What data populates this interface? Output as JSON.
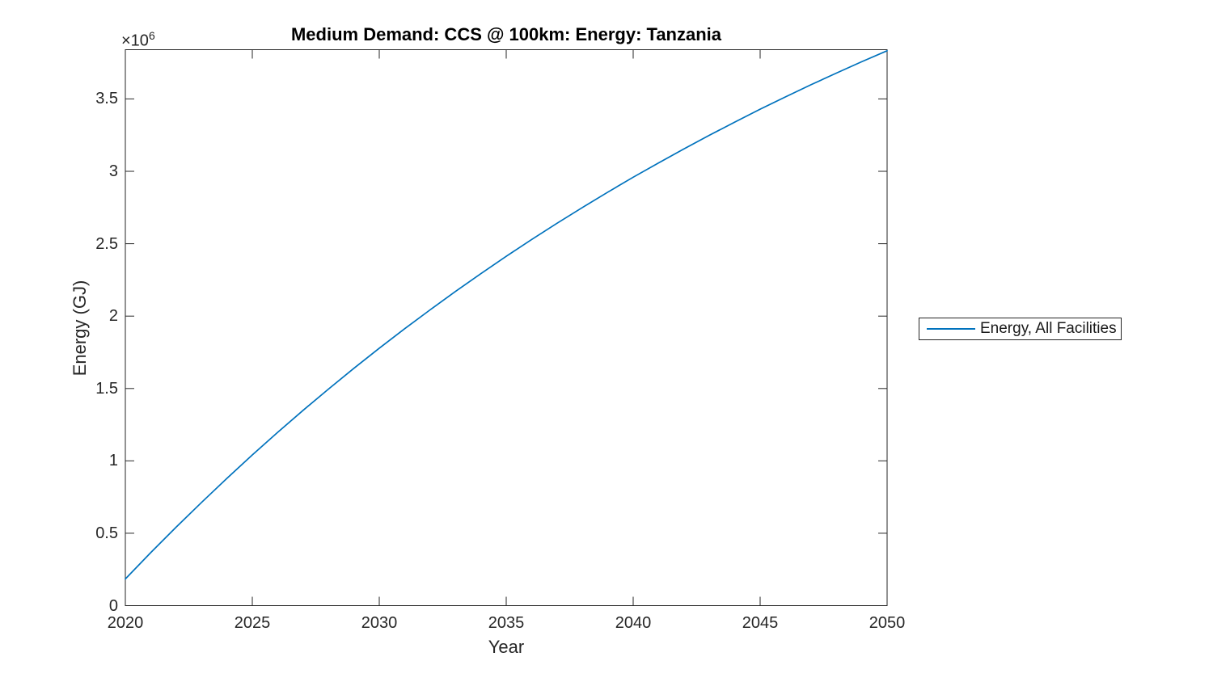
{
  "figure": {
    "background": "#ffffff"
  },
  "chart_data": {
    "type": "line",
    "title": "Medium Demand: CCS @ 100km: Energy: Tanzania",
    "xlabel": "Year",
    "ylabel": "Energy (GJ)",
    "y_axis_exponent": {
      "base": "×10",
      "power": "6"
    },
    "xlim": [
      2020,
      2050
    ],
    "ylim": [
      0,
      3840000
    ],
    "x_ticks": [
      2020,
      2025,
      2030,
      2035,
      2040,
      2045,
      2050
    ],
    "x_tick_labels": [
      "2020",
      "2025",
      "2030",
      "2035",
      "2040",
      "2045",
      "2050"
    ],
    "y_ticks": [
      0,
      500000,
      1000000,
      1500000,
      2000000,
      2500000,
      3000000,
      3500000
    ],
    "y_tick_labels": [
      "0",
      "0.5",
      "1",
      "1.5",
      "2",
      "2.5",
      "3",
      "3.5"
    ],
    "grid": false,
    "box": true,
    "tick_direction": "in",
    "axis_color": "#262626",
    "line_color": "#0072BD",
    "legend": {
      "position": "east-outside",
      "entries": [
        {
          "label": "Energy, All Facilities",
          "color": "#0072BD"
        }
      ]
    },
    "series": [
      {
        "name": "Energy, All Facilities",
        "x": [
          2020,
          2021,
          2022,
          2023,
          2024,
          2025,
          2026,
          2027,
          2028,
          2029,
          2030,
          2031,
          2032,
          2033,
          2034,
          2035,
          2036,
          2037,
          2038,
          2039,
          2040,
          2041,
          2042,
          2043,
          2044,
          2045,
          2046,
          2047,
          2048,
          2049,
          2050
        ],
        "values_GJ": [
          184000,
          366000,
          542000,
          713000,
          879000,
          1041000,
          1197000,
          1349000,
          1496000,
          1639000,
          1778000,
          1913000,
          2043000,
          2170000,
          2293000,
          2413000,
          2529000,
          2641000,
          2750000,
          2856000,
          2959000,
          3058000,
          3155000,
          3249000,
          3340000,
          3429000,
          3514000,
          3598000,
          3678000,
          3757000,
          3833000
        ]
      }
    ]
  }
}
